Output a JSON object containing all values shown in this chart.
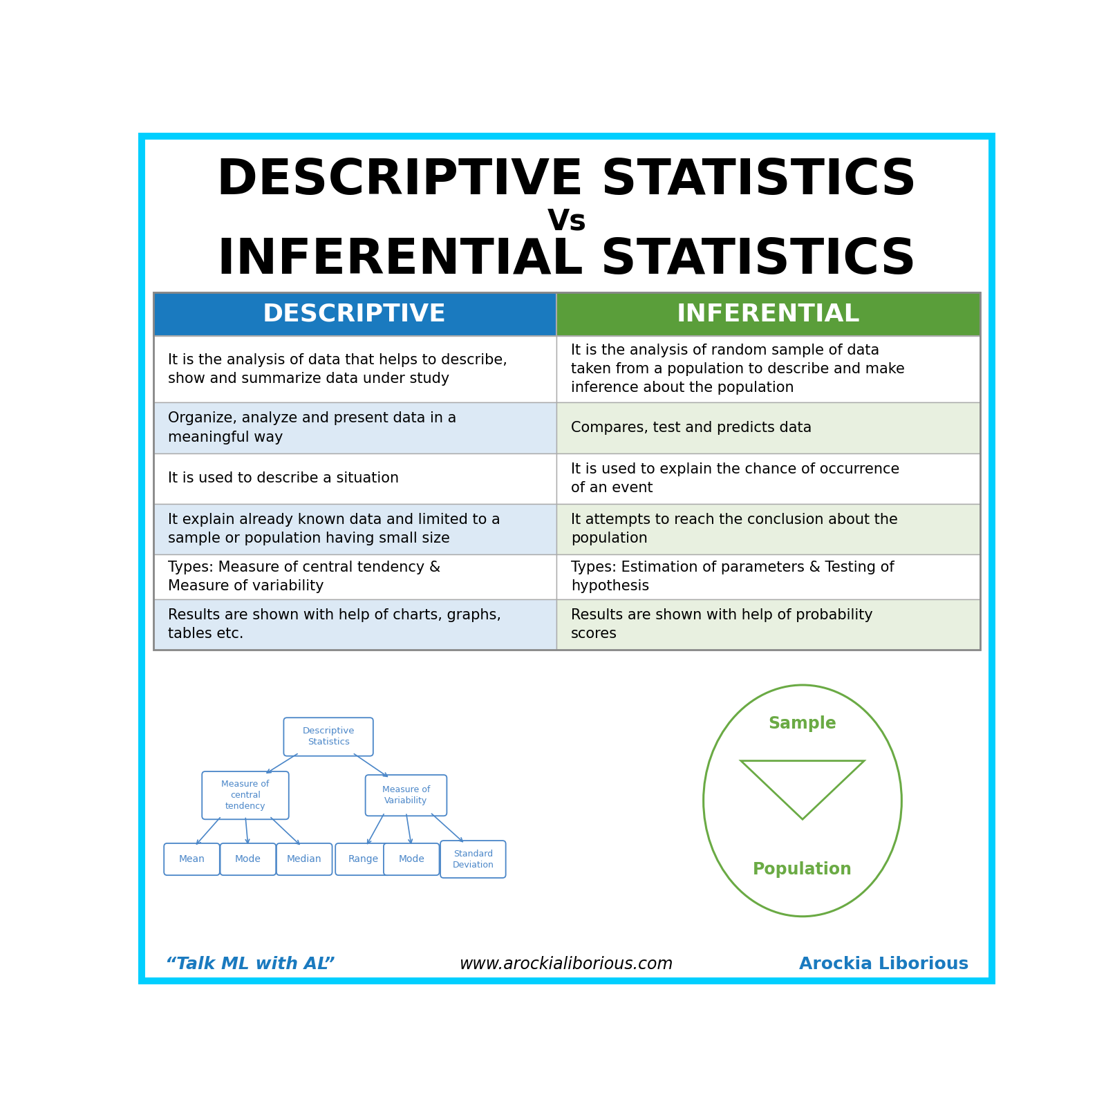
{
  "title_line1": "DESCRIPTIVE STATISTICS",
  "title_vs": "Vs",
  "title_line2": "INFERENTIAL STATISTICS",
  "col1_header": "DESCRIPTIVE",
  "col2_header": "INFERENTIAL",
  "col1_color": "#1a7abf",
  "col2_color": "#5a9e3a",
  "row_bg_col1_odd": "#ffffff",
  "row_bg_col1_even": "#dce9f5",
  "row_bg_col2_odd": "#ffffff",
  "row_bg_col2_even": "#e8f0e0",
  "border_color": "#aaaaaa",
  "background_color": "#ffffff",
  "outer_border_color": "#00cfff",
  "rows": [
    [
      "It is the analysis of data that helps to describe,\nshow and summarize data under study",
      "It is the analysis of random sample of data\ntaken from a population to describe and make\ninference about the population"
    ],
    [
      "Organize, analyze and present data in a\nmeaningful way",
      "Compares, test and predicts data"
    ],
    [
      "It is used to describe a situation",
      "It is used to explain the chance of occurrence\nof an event"
    ],
    [
      "It explain already known data and limited to a\nsample or population having small size",
      "It attempts to reach the conclusion about the\npopulation"
    ],
    [
      "Types: Measure of central tendency &\nMeasure of variability",
      "Types: Estimation of parameters & Testing of\nhypothesis"
    ],
    [
      "Results are shown with help of charts, graphs,\ntables etc.",
      "Results are shown with help of probability\nscores"
    ]
  ],
  "row_heights": [
    1.25,
    0.95,
    0.95,
    0.95,
    0.85,
    0.95
  ],
  "footer_left": "“Talk ML with AL”",
  "footer_center": "www.arockialiborious.com",
  "footer_right": "Arockia Liborious",
  "node_color": "#4a86c8",
  "circle_color": "#6aaa44",
  "sample_color": "#6aaa44",
  "population_color": "#6aaa44"
}
